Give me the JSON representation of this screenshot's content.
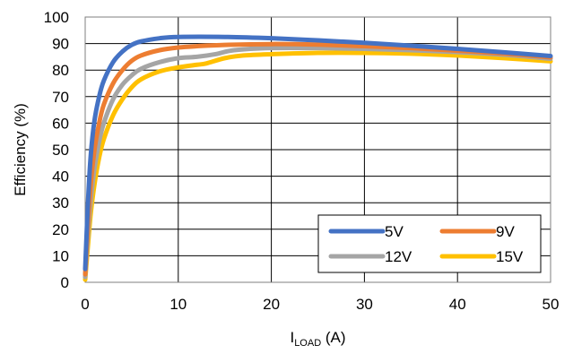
{
  "chart_data": {
    "type": "line",
    "title": "",
    "xlabel": {
      "main": "I",
      "subscript": "LOAD",
      "unit": " (A)"
    },
    "ylabel": "Efficiency (%)",
    "xlim": [
      0,
      50
    ],
    "ylim": [
      0,
      100
    ],
    "xticks": [
      0,
      10,
      20,
      30,
      40,
      50
    ],
    "yticks": [
      0,
      10,
      20,
      30,
      40,
      50,
      60,
      70,
      80,
      90,
      100
    ],
    "grid": true,
    "legend_position": "bottom-right",
    "series": [
      {
        "name": "5V",
        "color": "#4472C4",
        "x": [
          0,
          0.3,
          0.6,
          1,
          1.5,
          2,
          3,
          4,
          5,
          6,
          8,
          10,
          15,
          20,
          25,
          30,
          35,
          40,
          45,
          50
        ],
        "y": [
          5,
          30,
          48,
          61,
          70,
          76,
          83,
          87,
          89.5,
          90.8,
          92,
          92.5,
          92.5,
          92,
          91.2,
          90.3,
          89.2,
          88,
          86.7,
          85.3
        ]
      },
      {
        "name": "9V",
        "color": "#ED7D31",
        "x": [
          0,
          0.3,
          0.6,
          1,
          1.5,
          2,
          3,
          4,
          5,
          6,
          8,
          10,
          12,
          15,
          20,
          25,
          30,
          35,
          40,
          45,
          50
        ],
        "y": [
          3,
          22,
          37,
          50,
          60,
          67,
          75,
          80,
          83.5,
          85.5,
          87.5,
          88.5,
          89,
          89.5,
          89.8,
          89.6,
          89,
          88.3,
          87.3,
          86.2,
          84.8
        ]
      },
      {
        "name": "12V",
        "color": "#A5A5A5",
        "x": [
          0,
          0.3,
          0.6,
          1,
          1.5,
          2,
          3,
          4,
          5,
          6,
          8,
          10,
          12,
          14,
          16,
          20,
          25,
          30,
          35,
          40,
          45,
          50
        ],
        "y": [
          2,
          18,
          31,
          43,
          53,
          60,
          69,
          74.5,
          78,
          80.5,
          83,
          84.5,
          85,
          86,
          87.5,
          88.3,
          88.3,
          88,
          87.5,
          86.8,
          85.8,
          84.3
        ]
      },
      {
        "name": "15V",
        "color": "#FFC000",
        "x": [
          0,
          0.3,
          0.6,
          1,
          1.5,
          2,
          3,
          4,
          5,
          6,
          8,
          10,
          12,
          13,
          15,
          17,
          20,
          25,
          30,
          35,
          40,
          45,
          50
        ],
        "y": [
          1,
          14,
          26,
          37,
          47,
          54,
          63,
          69,
          73.5,
          76.5,
          79.5,
          81,
          82,
          82.5,
          84.5,
          85.5,
          86,
          86.5,
          86.5,
          86.2,
          85.5,
          84.5,
          83.3
        ]
      }
    ]
  }
}
